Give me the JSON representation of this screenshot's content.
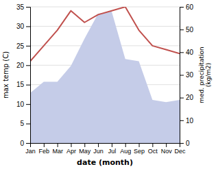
{
  "chart_data": {
    "type": "line",
    "categories": [
      "Jan",
      "Feb",
      "Mar",
      "Apr",
      "May",
      "Jun",
      "Jul",
      "Aug",
      "Sep",
      "Oct",
      "Nov",
      "Dec"
    ],
    "series": [
      {
        "type": "area",
        "color": "#c5cce8",
        "axis": "y2",
        "values": [
          22,
          27,
          27,
          34,
          46,
          57,
          58,
          37,
          36,
          19,
          18,
          19
        ]
      },
      {
        "type": "line",
        "color": "#c0504d",
        "values": [
          21,
          25,
          29,
          34,
          31,
          33,
          34,
          35,
          29,
          25,
          24,
          23
        ]
      }
    ],
    "xlabel": "date (month)",
    "ylabel": "max temp (C)",
    "y2label": "med. precipitation\n(kg/m2)",
    "ylim": [
      0,
      35
    ],
    "yticks": [
      0,
      5,
      10,
      15,
      20,
      25,
      30,
      35
    ],
    "y2lim": [
      0,
      60
    ],
    "y2ticks": [
      0,
      10,
      20,
      30,
      40,
      50,
      60
    ],
    "grid": true
  }
}
